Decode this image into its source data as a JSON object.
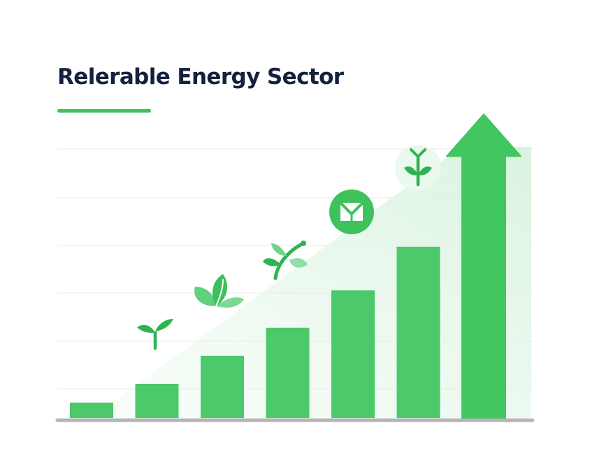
{
  "colors": {
    "title": "#14213d",
    "accent": "#3cc25a",
    "bar": "#4cc96a",
    "arrow": "#42c65f",
    "icon": "#2fb34e",
    "icon_bg": "#eaf8ed",
    "baseline": "#b5b5b5",
    "grid": "#f0f0f0"
  },
  "chart_data": {
    "type": "bar",
    "title": "Relerable Energy Sector",
    "xlabel": "",
    "ylabel": "",
    "categories": [
      "",
      "",
      "",
      "",
      "",
      "",
      ""
    ],
    "series": [
      {
        "values": [
          1,
          2.2,
          4,
          5.8,
          8.2,
          11,
          19.5
        ]
      }
    ],
    "ylim": [
      0,
      21
    ],
    "grid": true,
    "last_bar_style": "arrow",
    "icons": [
      "sprout-icon",
      "leaves-icon",
      "leaf-branch-icon",
      "energy-badge-icon",
      "sprout-badge-icon"
    ]
  }
}
